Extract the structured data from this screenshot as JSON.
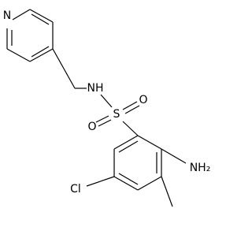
{
  "atoms": [
    {
      "label": "N"
    },
    {
      "label": "NH"
    },
    {
      "label": "S"
    },
    {
      "label": "O"
    },
    {
      "label": "O"
    },
    {
      "label": "NH₂"
    },
    {
      "label": "Cl"
    }
  ]
}
